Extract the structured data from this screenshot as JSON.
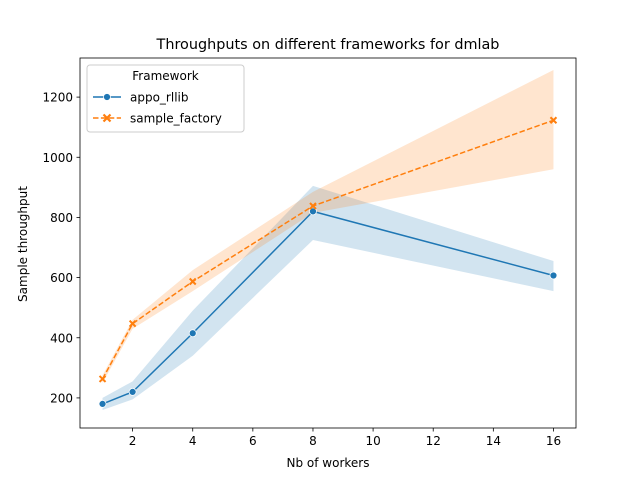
{
  "chart_data": {
    "type": "line",
    "title": "Throughputs on different frameworks for dmlab",
    "xlabel": "Nb of workers",
    "ylabel": "Sample throughput",
    "xlim": [
      0.25,
      16.75
    ],
    "ylim": [
      100,
      1330
    ],
    "xticks": [
      2,
      4,
      6,
      8,
      10,
      12,
      14,
      16
    ],
    "yticks": [
      200,
      400,
      600,
      800,
      1000,
      1200
    ],
    "grid": false,
    "legend": {
      "title": "Framework",
      "location": "upper-left"
    },
    "series": [
      {
        "name": "appo_rllib",
        "color": "#1f77b4",
        "marker": "circle",
        "linestyle": "solid",
        "x": [
          1,
          2,
          4,
          8,
          16
        ],
        "y": [
          180,
          220,
          415,
          820,
          607
        ],
        "ci_low": [
          160,
          195,
          340,
          725,
          555
        ],
        "ci_high": [
          200,
          255,
          490,
          905,
          655
        ]
      },
      {
        "name": "sample_factory",
        "color": "#ff7f0e",
        "marker": "x",
        "linestyle": "dashed",
        "x": [
          1,
          2,
          4,
          8,
          16
        ],
        "y": [
          263,
          447,
          587,
          838,
          1123
        ],
        "ci_low": [
          250,
          430,
          555,
          815,
          960
        ],
        "ci_high": [
          275,
          460,
          625,
          885,
          1290
        ]
      }
    ]
  }
}
